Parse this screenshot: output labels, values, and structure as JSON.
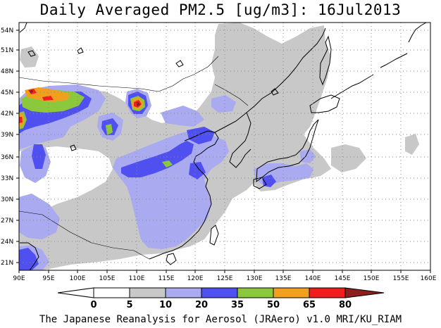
{
  "title": "Daily Averaged PM2.5 [ug/m3]: 16Jul2013",
  "footer": "The Japanese Reanalysis for Aerosol (JRAero) v1.0 MRI/KU_RIAM",
  "map": {
    "lon_range": [
      90,
      160
    ],
    "lat_range": [
      20,
      55
    ],
    "lon_labels": [
      "90E",
      "95E",
      "100E",
      "105E",
      "110E",
      "115E",
      "120E",
      "125E",
      "130E",
      "135E",
      "140E",
      "145E",
      "150E",
      "155E",
      "160E"
    ],
    "lat_labels": [
      "21N",
      "24N",
      "27N",
      "30N",
      "33N",
      "36N",
      "39N",
      "42N",
      "45N",
      "48N",
      "51N",
      "54N"
    ]
  },
  "legend": {
    "levels": [
      "0",
      "5",
      "10",
      "20",
      "35",
      "50",
      "65",
      "80"
    ],
    "colors": [
      "#ffffff",
      "#c8c8c8",
      "#aaaaf0",
      "#5050f0",
      "#8cc83c",
      "#f0a01e",
      "#f01e1e",
      "#8c1e1e"
    ]
  }
}
